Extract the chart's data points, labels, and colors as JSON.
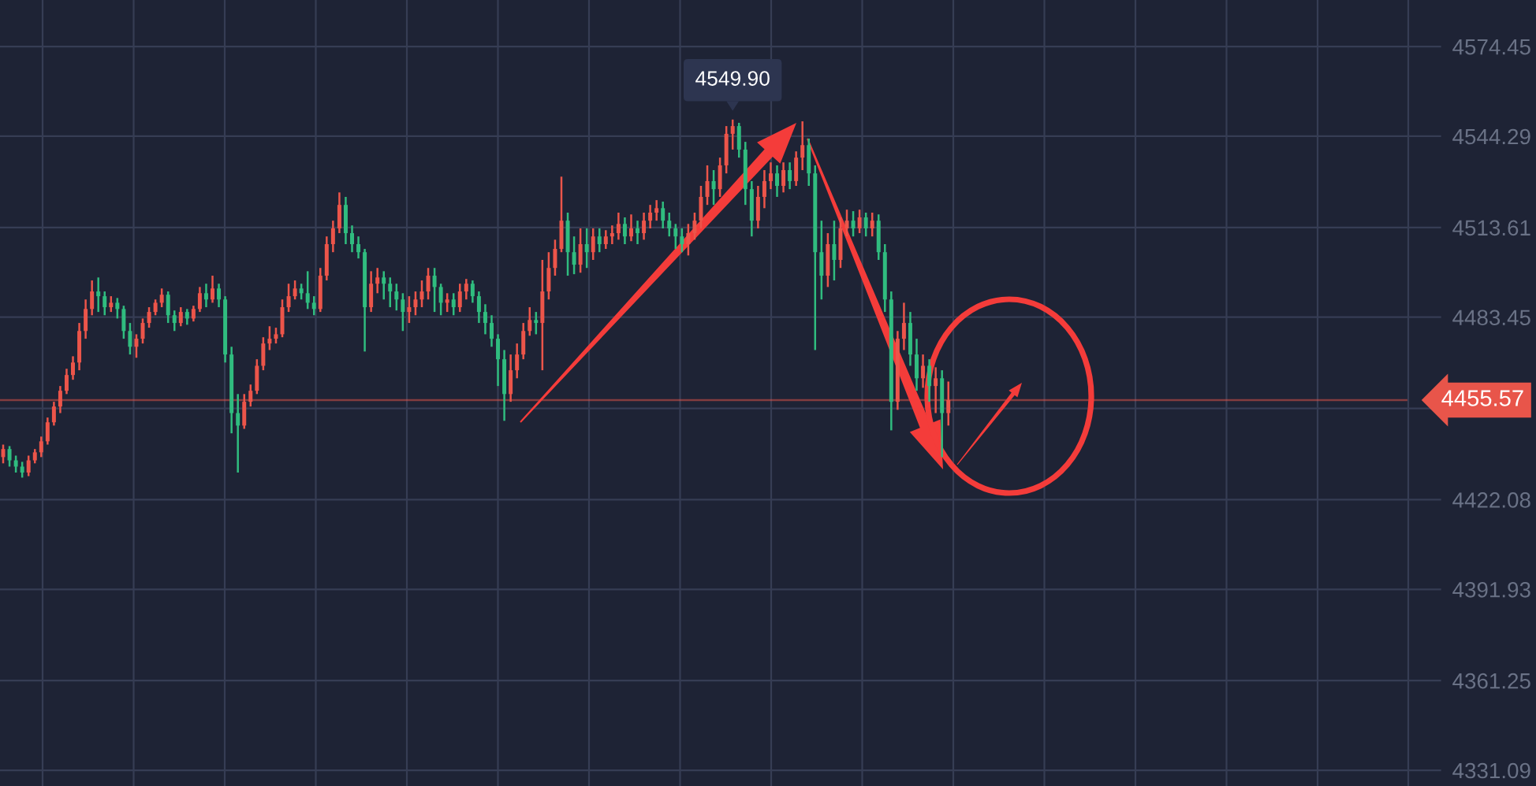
{
  "chart_data": {
    "type": "candlestick",
    "categories": [
      null,
      null,
      null,
      null,
      null,
      null,
      null,
      null,
      null,
      null,
      null,
      null,
      null,
      null,
      null,
      null,
      null,
      null,
      null,
      null,
      null,
      null,
      null,
      null,
      null,
      null,
      null,
      null,
      null,
      null,
      null,
      null,
      null,
      null,
      null,
      null,
      null,
      null,
      null,
      null,
      null,
      null,
      null,
      null,
      null,
      null,
      null,
      null,
      null,
      null,
      null,
      null,
      null,
      null,
      null,
      null,
      null,
      null,
      null,
      null,
      null,
      null,
      null,
      null,
      null,
      null,
      null,
      null,
      null,
      null,
      null,
      null,
      null,
      null,
      null,
      null,
      null,
      null,
      null,
      null,
      null,
      null,
      null,
      null,
      null,
      null,
      null,
      null,
      null,
      null,
      null,
      null,
      null,
      null,
      null,
      null,
      null,
      null,
      null,
      null,
      null,
      null,
      null,
      null,
      null,
      null,
      null,
      null,
      null,
      null,
      null,
      null,
      null,
      null,
      null,
      null,
      null,
      null,
      null,
      null,
      null,
      null,
      null,
      null,
      null,
      null,
      null,
      null,
      null,
      null,
      null,
      null,
      null,
      null,
      null,
      null,
      null,
      null,
      null,
      null,
      null,
      null,
      null,
      null,
      null,
      null,
      null,
      null,
      null,
      null,
      null,
      null,
      null,
      null,
      null,
      null,
      null,
      null,
      null,
      null,
      null,
      null,
      null,
      null,
      null,
      null,
      null,
      null,
      null,
      null,
      null,
      null,
      null,
      null,
      null,
      null,
      null,
      null,
      null,
      null,
      null,
      null,
      null,
      null,
      null,
      null,
      null,
      null,
      null,
      null,
      null,
      null,
      null,
      null,
      null,
      null,
      null,
      null,
      null,
      null,
      null,
      null,
      null,
      null,
      null,
      null,
      null,
      null,
      null,
      null,
      null,
      null,
      null,
      null,
      null,
      null,
      null,
      null,
      null,
      null,
      null,
      null
    ],
    "ohlc": [
      [
        4436.4,
        4440.6,
        4434.3,
        4439.1
      ],
      [
        4439.1,
        4440.1,
        4433.2,
        4435.3
      ],
      [
        4435.3,
        4436.9,
        4431.2,
        4433.2
      ],
      [
        4433.2,
        4434.8,
        4429.5,
        4431.2
      ],
      [
        4431.2,
        4436.9,
        4430.0,
        4435.3
      ],
      [
        4435.3,
        4439.1,
        4434.3,
        4438.0
      ],
      [
        4438.0,
        4443.3,
        4436.4,
        4441.7
      ],
      [
        4441.7,
        4449.7,
        4440.6,
        4448.1
      ],
      [
        4448.1,
        4455.0,
        4447.0,
        4453.4
      ],
      [
        4453.4,
        4460.3,
        4451.2,
        4458.7
      ],
      [
        4458.7,
        4466.1,
        4457.6,
        4464.0
      ],
      [
        4464.0,
        4470.3,
        4462.4,
        4468.2
      ],
      [
        4468.2,
        4481.5,
        4465.6,
        4478.8
      ],
      [
        4478.8,
        4489.4,
        4476.2,
        4486.2
      ],
      [
        4486.2,
        4495.8,
        4484.1,
        4492.1
      ],
      [
        4492.1,
        4496.8,
        4485.2,
        4490.5
      ],
      [
        4490.5,
        4492.1,
        4484.1,
        4486.8
      ],
      [
        4486.8,
        4490.5,
        4485.2,
        4488.3
      ],
      [
        4488.3,
        4489.9,
        4483.0,
        4486.2
      ],
      [
        4486.2,
        4487.3,
        4476.2,
        4478.8
      ],
      [
        4478.8,
        4481.5,
        4470.9,
        4473.5
      ],
      [
        4473.5,
        4477.7,
        4469.8,
        4476.2
      ],
      [
        4476.2,
        4483.0,
        4474.6,
        4481.5
      ],
      [
        4481.5,
        4486.8,
        4479.9,
        4485.2
      ],
      [
        4485.2,
        4489.4,
        4484.1,
        4488.3
      ],
      [
        4488.3,
        4493.1,
        4486.8,
        4491.0
      ],
      [
        4491.0,
        4492.1,
        4481.5,
        4484.1
      ],
      [
        4484.1,
        4485.7,
        4478.8,
        4481.5
      ],
      [
        4481.5,
        4486.8,
        4480.4,
        4485.2
      ],
      [
        4485.2,
        4486.2,
        4480.9,
        4483.0
      ],
      [
        4483.0,
        4487.3,
        4482.0,
        4486.2
      ],
      [
        4486.2,
        4493.6,
        4485.2,
        4491.5
      ],
      [
        4491.5,
        4494.7,
        4486.8,
        4489.4
      ],
      [
        4489.4,
        4497.4,
        4488.3,
        4493.1
      ],
      [
        4493.1,
        4494.7,
        4486.8,
        4489.4
      ],
      [
        4489.4,
        4490.5,
        4468.2,
        4470.9
      ],
      [
        4470.9,
        4473.5,
        4444.4,
        4451.2
      ],
      [
        4451.2,
        4457.6,
        4431.2,
        4447.0
      ],
      [
        4447.0,
        4457.6,
        4445.9,
        4455.0
      ],
      [
        4455.0,
        4460.8,
        4453.4,
        4458.7
      ],
      [
        4458.7,
        4469.3,
        4457.6,
        4467.1
      ],
      [
        4467.1,
        4476.7,
        4465.6,
        4474.6
      ],
      [
        4474.6,
        4480.4,
        4472.4,
        4476.2
      ],
      [
        4476.2,
        4479.9,
        4474.6,
        4477.7
      ],
      [
        4477.7,
        4489.4,
        4476.7,
        4486.8
      ],
      [
        4486.8,
        4494.7,
        4485.2,
        4490.5
      ],
      [
        4490.5,
        4495.8,
        4489.4,
        4493.1
      ],
      [
        4493.1,
        4494.7,
        4489.4,
        4491.5
      ],
      [
        4491.5,
        4498.9,
        4486.2,
        4488.3
      ],
      [
        4488.3,
        4490.5,
        4484.1,
        4486.2
      ],
      [
        4486.2,
        4500.0,
        4485.2,
        4497.4
      ],
      [
        4497.4,
        4510.6,
        4495.8,
        4508.0
      ],
      [
        4508.0,
        4515.9,
        4505.3,
        4513.3
      ],
      [
        4513.3,
        4525.4,
        4511.7,
        4521.2
      ],
      [
        4521.2,
        4523.9,
        4508.0,
        4511.7
      ],
      [
        4511.7,
        4514.3,
        4505.3,
        4508.0
      ],
      [
        4508.0,
        4510.6,
        4503.2,
        4505.3
      ],
      [
        4505.3,
        4506.4,
        4471.9,
        4486.8
      ],
      [
        4486.8,
        4498.9,
        4485.2,
        4494.7
      ],
      [
        4494.7,
        4500.0,
        4491.5,
        4496.8
      ],
      [
        4496.8,
        4498.9,
        4489.4,
        4494.7
      ],
      [
        4494.7,
        4496.8,
        4486.8,
        4492.1
      ],
      [
        4492.1,
        4494.7,
        4485.7,
        4489.4
      ],
      [
        4489.4,
        4491.5,
        4478.8,
        4485.2
      ],
      [
        4485.2,
        4490.5,
        4481.5,
        4486.8
      ],
      [
        4486.8,
        4492.1,
        4484.1,
        4489.4
      ],
      [
        4489.4,
        4495.8,
        4486.8,
        4492.1
      ],
      [
        4492.1,
        4500.0,
        4489.4,
        4497.4
      ],
      [
        4497.4,
        4500.0,
        4485.2,
        4493.6
      ],
      [
        4493.6,
        4494.7,
        4484.1,
        4488.3
      ],
      [
        4488.3,
        4491.5,
        4485.2,
        4489.4
      ],
      [
        4489.4,
        4491.5,
        4484.1,
        4486.8
      ],
      [
        4486.8,
        4494.7,
        4485.2,
        4492.1
      ],
      [
        4492.1,
        4496.3,
        4489.4,
        4494.7
      ],
      [
        4494.7,
        4495.8,
        4488.3,
        4490.5
      ],
      [
        4490.5,
        4492.1,
        4481.5,
        4485.2
      ],
      [
        4485.2,
        4487.8,
        4477.7,
        4481.5
      ],
      [
        4481.5,
        4484.1,
        4473.5,
        4476.2
      ],
      [
        4476.2,
        4477.7,
        4460.3,
        4469.3
      ],
      [
        4469.3,
        4472.4,
        4448.6,
        4457.6
      ],
      [
        4457.6,
        4470.9,
        4455.0,
        4465.6
      ],
      [
        4465.6,
        4474.6,
        4462.9,
        4470.9
      ],
      [
        4470.9,
        4481.5,
        4469.3,
        4478.8
      ],
      [
        4478.8,
        4486.8,
        4477.2,
        4482.5
      ],
      [
        4482.5,
        4485.2,
        4477.7,
        4481.5
      ],
      [
        4481.5,
        4502.7,
        4465.6,
        4492.1
      ],
      [
        4492.1,
        4505.3,
        4489.4,
        4500.0
      ],
      [
        4500.0,
        4509.5,
        4497.4,
        4506.4
      ],
      [
        4506.4,
        4530.7,
        4505.3,
        4515.9
      ],
      [
        4515.9,
        4518.6,
        4497.4,
        4505.3
      ],
      [
        4505.3,
        4510.6,
        4497.9,
        4501.1
      ],
      [
        4501.1,
        4513.3,
        4498.4,
        4508.0
      ],
      [
        4508.0,
        4513.3,
        4500.0,
        4505.3
      ],
      [
        4505.3,
        4513.3,
        4502.7,
        4510.6
      ],
      [
        4510.6,
        4513.3,
        4505.3,
        4508.0
      ],
      [
        4508.0,
        4512.7,
        4506.4,
        4510.6
      ],
      [
        4510.6,
        4514.3,
        4508.0,
        4511.7
      ],
      [
        4511.7,
        4518.6,
        4509.5,
        4514.8
      ],
      [
        4514.8,
        4517.0,
        4508.0,
        4510.6
      ],
      [
        4510.6,
        4518.0,
        4509.0,
        4513.3
      ],
      [
        4513.3,
        4515.9,
        4508.0,
        4511.7
      ],
      [
        4511.7,
        4518.6,
        4509.5,
        4515.9
      ],
      [
        4515.9,
        4521.2,
        4513.3,
        4518.6
      ],
      [
        4518.6,
        4522.8,
        4515.9,
        4520.1
      ],
      [
        4520.1,
        4522.3,
        4513.3,
        4515.9
      ],
      [
        4515.9,
        4518.6,
        4510.6,
        4513.3
      ],
      [
        4513.3,
        4514.8,
        4506.4,
        4510.6
      ],
      [
        4510.6,
        4513.3,
        4505.3,
        4508.0
      ],
      [
        4508.0,
        4514.8,
        4504.2,
        4511.7
      ],
      [
        4511.7,
        4518.6,
        4509.5,
        4515.9
      ],
      [
        4515.9,
        4527.6,
        4513.3,
        4523.9
      ],
      [
        4523.9,
        4534.5,
        4521.2,
        4529.2
      ],
      [
        4529.2,
        4532.9,
        4521.2,
        4526.5
      ],
      [
        4526.5,
        4537.1,
        4523.9,
        4534.5
      ],
      [
        4534.5,
        4547.7,
        4531.8,
        4545.1
      ],
      [
        4545.1,
        4549.9,
        4539.8,
        4547.7
      ],
      [
        4547.7,
        4548.8,
        4537.1,
        4539.8
      ],
      [
        4539.8,
        4542.4,
        4521.2,
        4526.5
      ],
      [
        4526.5,
        4529.2,
        4510.6,
        4515.9
      ],
      [
        4515.9,
        4527.6,
        4513.3,
        4523.9
      ],
      [
        4523.9,
        4532.9,
        4520.1,
        4529.2
      ],
      [
        4529.2,
        4535.5,
        4526.5,
        4531.8
      ],
      [
        4531.8,
        4534.5,
        4523.9,
        4527.6
      ],
      [
        4527.6,
        4535.5,
        4525.4,
        4532.9
      ],
      [
        4532.9,
        4535.5,
        4526.5,
        4529.2
      ],
      [
        4529.2,
        4539.2,
        4527.6,
        4537.1
      ],
      [
        4537.1,
        4549.3,
        4532.9,
        4541.3
      ],
      [
        4541.3,
        4543.5,
        4527.6,
        4531.8
      ],
      [
        4531.8,
        4534.5,
        4472.4,
        4505.3
      ],
      [
        4505.3,
        4515.9,
        4489.4,
        4497.4
      ],
      [
        4497.4,
        4511.7,
        4493.6,
        4508.0
      ],
      [
        4508.0,
        4515.9,
        4495.8,
        4502.7
      ],
      [
        4502.7,
        4517.0,
        4500.0,
        4513.3
      ],
      [
        4513.3,
        4519.6,
        4510.6,
        4515.9
      ],
      [
        4515.9,
        4519.1,
        4510.6,
        4513.3
      ],
      [
        4513.3,
        4519.6,
        4511.7,
        4517.0
      ],
      [
        4517.0,
        4518.6,
        4510.6,
        4513.3
      ],
      [
        4513.3,
        4518.6,
        4510.6,
        4515.9
      ],
      [
        4515.9,
        4518.0,
        4502.7,
        4505.3
      ],
      [
        4505.3,
        4508.0,
        4485.2,
        4489.4
      ],
      [
        4489.4,
        4492.1,
        4445.4,
        4455.0
      ],
      [
        4455.0,
        4478.8,
        4452.3,
        4476.2
      ],
      [
        4476.2,
        4488.3,
        4472.4,
        4481.5
      ],
      [
        4481.5,
        4485.2,
        4467.1,
        4470.9
      ],
      [
        4470.9,
        4476.2,
        4458.7,
        4462.9
      ],
      [
        4462.9,
        4470.9,
        4459.7,
        4467.1
      ],
      [
        4467.1,
        4469.3,
        4455.0,
        4460.3
      ],
      [
        4460.3,
        4466.6,
        4451.2,
        4462.9
      ],
      [
        4462.9,
        4465.6,
        4436.4,
        4451.2
      ],
      [
        4451.2,
        4461.8,
        4447.0,
        4455.57
      ],
      null,
      null,
      null,
      null,
      null,
      null,
      null,
      null,
      null,
      null,
      null,
      null,
      null,
      null,
      null,
      null,
      null,
      null,
      null,
      null,
      null,
      null,
      null,
      null,
      null,
      null,
      null,
      null,
      null,
      null,
      null,
      null,
      null,
      null,
      null,
      null,
      null,
      null,
      null,
      null,
      null,
      null,
      null,
      null,
      null,
      null,
      null,
      null,
      null,
      null,
      null,
      null,
      null,
      null,
      null,
      null,
      null,
      null,
      null,
      null,
      null,
      null,
      null,
      null,
      null,
      null,
      null,
      null,
      null,
      null,
      null,
      null
    ],
    "colors": [
      "#ec554a",
      "#30bc7f",
      "#30bc7f",
      "#30bc7f",
      "#ec554a",
      "#ec554a",
      "#ec554a",
      "#ec554a",
      "#ec554a",
      "#ec554a",
      "#ec554a",
      "#ec554a",
      "#ec554a",
      "#ec554a",
      "#ec554a",
      "#30bc7f",
      "#30bc7f",
      "#ec554a",
      "#30bc7f",
      "#30bc7f",
      "#30bc7f",
      "#ec554a",
      "#ec554a",
      "#ec554a",
      "#ec554a",
      "#ec554a",
      "#30bc7f",
      "#30bc7f",
      "#ec554a",
      "#30bc7f",
      "#ec554a",
      "#ec554a",
      "#30bc7f",
      "#ec554a",
      "#30bc7f",
      "#30bc7f",
      "#30bc7f",
      "#30bc7f",
      "#ec554a",
      "#ec554a",
      "#ec554a",
      "#ec554a",
      "#ec554a",
      "#ec554a",
      "#ec554a",
      "#ec554a",
      "#ec554a",
      "#30bc7f",
      "#30bc7f",
      "#30bc7f",
      "#ec554a",
      "#ec554a",
      "#ec554a",
      "#ec554a",
      "#30bc7f",
      "#30bc7f",
      "#30bc7f",
      "#30bc7f",
      "#ec554a",
      "#ec554a",
      "#30bc7f",
      "#30bc7f",
      "#30bc7f",
      "#30bc7f",
      "#ec554a",
      "#ec554a",
      "#ec554a",
      "#ec554a",
      "#30bc7f",
      "#30bc7f",
      "#ec554a",
      "#30bc7f",
      "#ec554a",
      "#ec554a",
      "#30bc7f",
      "#30bc7f",
      "#30bc7f",
      "#30bc7f",
      "#30bc7f",
      "#30bc7f",
      "#ec554a",
      "#ec554a",
      "#ec554a",
      "#ec554a",
      "#30bc7f",
      "#ec554a",
      "#ec554a",
      "#ec554a",
      "#ec554a",
      "#30bc7f",
      "#30bc7f",
      "#ec554a",
      "#30bc7f",
      "#ec554a",
      "#30bc7f",
      "#ec554a",
      "#ec554a",
      "#ec554a",
      "#30bc7f",
      "#ec554a",
      "#30bc7f",
      "#ec554a",
      "#ec554a",
      "#ec554a",
      "#30bc7f",
      "#30bc7f",
      "#30bc7f",
      "#30bc7f",
      "#ec554a",
      "#ec554a",
      "#ec554a",
      "#ec554a",
      "#30bc7f",
      "#ec554a",
      "#ec554a",
      "#ec554a",
      "#30bc7f",
      "#30bc7f",
      "#30bc7f",
      "#ec554a",
      "#ec554a",
      "#ec554a",
      "#30bc7f",
      "#ec554a",
      "#30bc7f",
      "#ec554a",
      "#ec554a",
      "#30bc7f",
      "#30bc7f",
      "#30bc7f",
      "#ec554a",
      "#30bc7f",
      "#ec554a",
      "#ec554a",
      "#30bc7f",
      "#ec554a",
      "#30bc7f",
      "#ec554a",
      "#30bc7f",
      "#30bc7f",
      "#30bc7f",
      "#ec554a",
      "#ec554a",
      "#30bc7f",
      "#30bc7f",
      "#ec554a",
      "#30bc7f",
      "#ec554a",
      "#30bc7f",
      "#ec554a",
      null,
      null,
      null,
      null,
      null,
      null,
      null,
      null,
      null,
      null,
      null,
      null,
      null,
      null,
      null,
      null,
      null,
      null,
      null,
      null,
      null,
      null,
      null,
      null,
      null,
      null,
      null,
      null,
      null,
      null,
      null,
      null,
      null,
      null,
      null,
      null,
      null,
      null,
      null,
      null,
      null,
      null,
      null,
      null,
      null,
      null,
      null,
      null,
      null,
      null,
      null,
      null,
      null,
      null,
      null,
      null,
      null,
      null,
      null,
      null,
      null,
      null,
      null,
      null,
      null,
      null,
      null,
      null,
      null,
      null,
      null,
      null
    ],
    "ylim": [
      4325.8,
      4590.1
    ],
    "yticks": [
      4574.45,
      4544.29,
      4513.61,
      4483.45,
      {
        "value": 4452.77,
        "label": null
      },
      4422.08,
      4391.93,
      4361.25,
      4331.09
    ],
    "grid": true,
    "tick_labels": "y",
    "ref_lines": [
      {
        "axis": "y",
        "value": 4455.57,
        "label": "4455.57",
        "color": "#e8554a"
      }
    ],
    "annotations": [
      {
        "text": "4549.90",
        "y": 4549.9
      }
    ]
  }
}
